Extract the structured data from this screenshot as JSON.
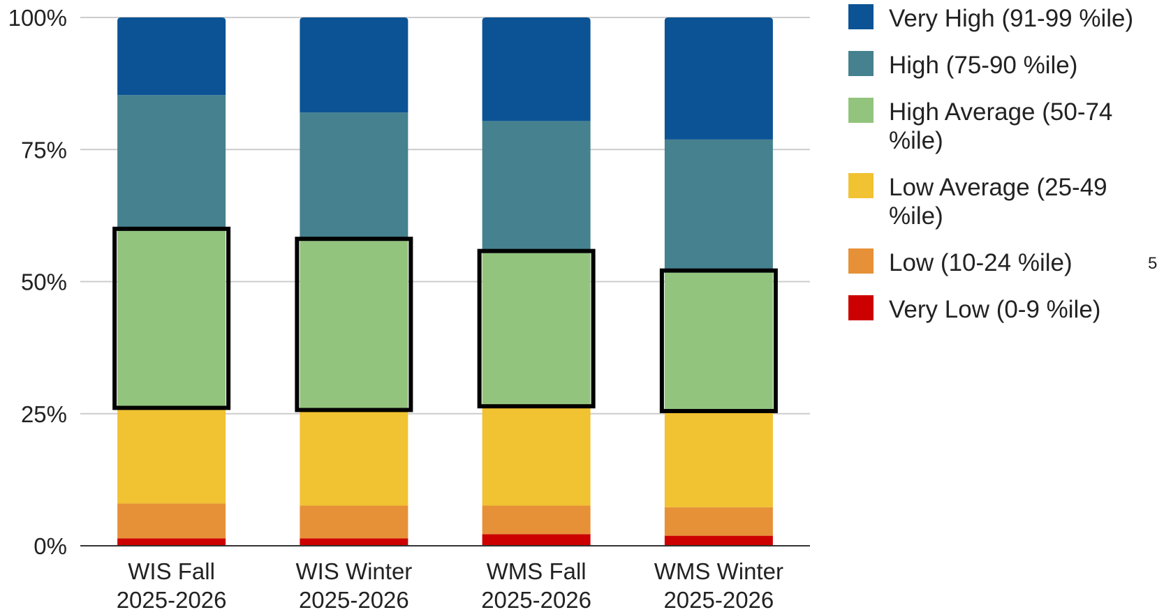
{
  "chart_data": {
    "type": "bar",
    "stacked": true,
    "stack_mode": "percent",
    "categories": [
      [
        "WIS Fall",
        "2025-2026"
      ],
      [
        "WIS Winter",
        "2025-2026"
      ],
      [
        "WMS Fall",
        "2025-2026"
      ],
      [
        "WMS Winter",
        "2025-2026"
      ]
    ],
    "series": [
      {
        "name": "Very Low (0-9 %ile)",
        "color": "#cc0000",
        "values": [
          1.4,
          1.4,
          2.2,
          1.9
        ]
      },
      {
        "name": "Low (10-24 %ile)",
        "color": "#e69138",
        "values": [
          6.6,
          6.2,
          5.4,
          5.4
        ]
      },
      {
        "name": "Low Average (25-49 %ile)",
        "color": "#f1c232",
        "values": [
          18.5,
          18.5,
          19.2,
          18.6
        ]
      },
      {
        "name": "High Average (50-74 %ile)",
        "color": "#93c47d",
        "values": [
          33.1,
          31.6,
          28.6,
          25.8
        ]
      },
      {
        "name": "High (75-90 %ile)",
        "color": "#45818e",
        "values": [
          25.7,
          24.3,
          25.0,
          25.2
        ]
      },
      {
        "name": "Very High (91-99 %ile)",
        "color": "#0b5394",
        "values": [
          14.7,
          18.0,
          19.6,
          23.1
        ]
      }
    ],
    "highlighted_series": "High Average (50-74 %ile)",
    "yticks": [
      "0%",
      "25%",
      "50%",
      "75%",
      "100%"
    ],
    "ylim": [
      0,
      100
    ],
    "grid": true,
    "legend_position": "right",
    "title": "",
    "xlabel": "",
    "ylabel": ""
  },
  "edge_label": "5"
}
